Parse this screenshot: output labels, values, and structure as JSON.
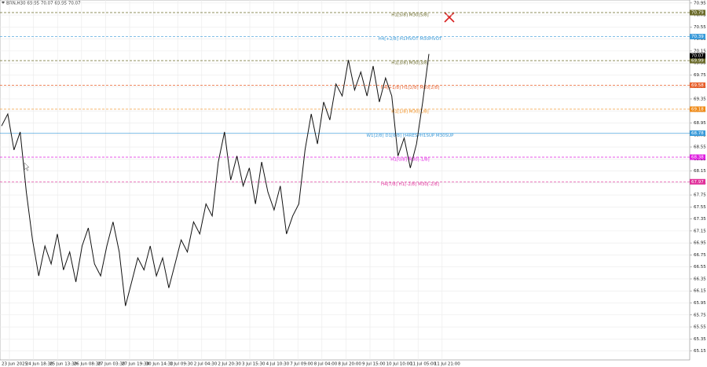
{
  "chart_data": {
    "type": "line",
    "header": "BRN,H30  69.95 70.07 69.95 70.07",
    "color": "#111111",
    "values": [
      68.9,
      69.1,
      68.5,
      68.8,
      67.8,
      67.0,
      66.4,
      66.9,
      66.6,
      67.1,
      66.5,
      66.8,
      66.3,
      66.9,
      67.2,
      66.6,
      66.4,
      66.9,
      67.3,
      66.8,
      65.9,
      66.3,
      66.7,
      66.5,
      66.9,
      66.4,
      66.7,
      66.2,
      66.6,
      67.0,
      66.8,
      67.3,
      67.1,
      67.6,
      67.4,
      68.3,
      68.8,
      68.0,
      68.4,
      67.9,
      68.2,
      67.6,
      68.3,
      67.8,
      67.5,
      67.9,
      67.1,
      67.4,
      67.6,
      68.5,
      69.1,
      68.6,
      69.3,
      69.0,
      69.6,
      69.4,
      70.0,
      69.5,
      69.8,
      69.4,
      69.9,
      69.3,
      69.7,
      69.4,
      68.4,
      68.7,
      68.2,
      68.6,
      69.3,
      70.1
    ],
    "ylim": [
      65.0,
      71.0
    ],
    "yticks": [
      70.95,
      70.75,
      70.55,
      70.35,
      70.15,
      69.95,
      69.75,
      69.55,
      69.35,
      69.15,
      68.95,
      68.75,
      68.55,
      68.35,
      68.15,
      67.95,
      67.75,
      67.55,
      67.35,
      67.15,
      66.95,
      66.75,
      66.55,
      66.35,
      66.15,
      65.95,
      65.75,
      65.55,
      65.35,
      65.15
    ],
    "xticks": [
      "23 Jun 2025",
      "24 Jun 18:30",
      "25 Jun 13:30",
      "26 Jun 08:30",
      "27 Jun 03:30",
      "27 Jun 19:30",
      "30 Jun 14:30",
      "1 Jul 09:30",
      "2 Jul 04:30",
      "2 Jul 20:30",
      "3 Jul 15:30",
      "4 Jul 10:30",
      "7 Jul 09:00",
      "8 Jul 04:00",
      "8 Jul 20:00",
      "9 Jul 15:00",
      "10 Jul 10:00",
      "11 Jul 05:00",
      "11 Jul 21:00"
    ],
    "current_price": 70.07,
    "levels": [
      {
        "value": 70.79,
        "label": "H1[5/8] M30[5/8]",
        "color": "#6b6b2a",
        "dash": true
      },
      {
        "value": 70.39,
        "label": "H4[+2/8] H1PIVOT M30PIVOT",
        "color": "#3a9ad9",
        "dash": true
      },
      {
        "value": 69.99,
        "label": "H1[3/8] M30[3/8]",
        "color": "#6b6b2a",
        "dash": true
      },
      {
        "value": 69.58,
        "label": "H4[+1/8] H1[2/8] M30[2/8]",
        "color": "#e8602c",
        "dash": true
      },
      {
        "value": 69.18,
        "label": "H1[1/8] M30[1/8]",
        "color": "#f08c1a",
        "dash": true
      },
      {
        "value": 68.78,
        "label": "W1[2/8] D1[6/8] H4RESPH1SUP M30SUP",
        "color": "#3a9ad9",
        "dash": false
      },
      {
        "value": 68.38,
        "label": "H1[0/8] M30[-1/8]",
        "color": "#e020e0",
        "dash": true
      },
      {
        "value": 67.97,
        "label": "H4[7/8] H1[-2/8] M30[-2/8]",
        "color": "#e0309a",
        "dash": true
      }
    ]
  }
}
